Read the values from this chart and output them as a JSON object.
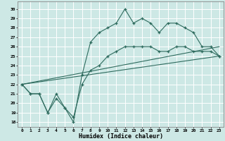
{
  "xlabel": "Humidex (Indice chaleur)",
  "bg_color": "#cde8e5",
  "grid_color": "#ffffff",
  "line_color": "#2e6b5e",
  "xlim": [
    -0.5,
    23.5
  ],
  "ylim": [
    17.5,
    30.8
  ],
  "xticks": [
    0,
    1,
    2,
    3,
    4,
    5,
    6,
    7,
    8,
    9,
    10,
    11,
    12,
    13,
    14,
    15,
    16,
    17,
    18,
    19,
    20,
    21,
    22,
    23
  ],
  "yticks": [
    18,
    19,
    20,
    21,
    22,
    23,
    24,
    25,
    26,
    27,
    28,
    29,
    30
  ],
  "line1_x": [
    0,
    1,
    2,
    3,
    4,
    5,
    6,
    7,
    8,
    9,
    10,
    11,
    12,
    13,
    14,
    15,
    16,
    17,
    18,
    19,
    20,
    21,
    22,
    23
  ],
  "line1_y": [
    22,
    21,
    21,
    19,
    21,
    19.5,
    18,
    23,
    26.5,
    27.5,
    28,
    28.5,
    30,
    28.5,
    29,
    28.5,
    27.5,
    28.5,
    28.5,
    28,
    27.5,
    26,
    26,
    25
  ],
  "line2_x": [
    0,
    1,
    2,
    3,
    4,
    5,
    6,
    7,
    8,
    9,
    10,
    11,
    12,
    13,
    14,
    15,
    16,
    17,
    18,
    19,
    20,
    21,
    22,
    23
  ],
  "line2_y": [
    22,
    21,
    21,
    19,
    20.5,
    19.5,
    18.5,
    22,
    23.5,
    24,
    25,
    25.5,
    26,
    26,
    26,
    26,
    25.5,
    25.5,
    26,
    26,
    25.5,
    25.5,
    25.5,
    25
  ],
  "line3_x": [
    0,
    23
  ],
  "line3_y": [
    22,
    25
  ],
  "line4_x": [
    0,
    23
  ],
  "line4_y": [
    22,
    26
  ]
}
